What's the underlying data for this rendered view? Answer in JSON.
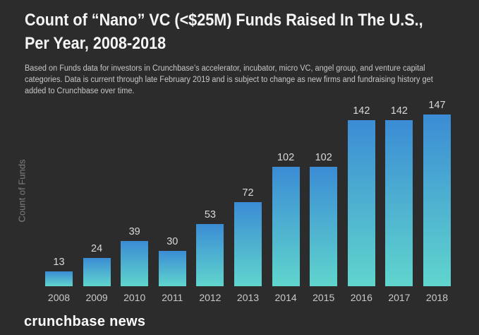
{
  "header": {
    "title_lines": [
      "Count of “Nano” VC (<$25M) Funds Raised In The U.S.,",
      "Per Year, 2008-2018"
    ],
    "subtitle_lines": [
      "Based on Funds data for investors in Crunchbase’s accelerator, incubator, micro VC, angel group, and venture capital",
      "categories. Data is current through late February 2019 and is subject to change as new firms and fundraising history get",
      "added to Crunchbase over time."
    ]
  },
  "chart_data": {
    "type": "bar",
    "title": "Count of “Nano” VC (<$25M) Funds Raised In The U.S., Per Year, 2008-2018",
    "categories": [
      "2008",
      "2009",
      "2010",
      "2011",
      "2012",
      "2013",
      "2014",
      "2015",
      "2016",
      "2017",
      "2018"
    ],
    "values": [
      13,
      24,
      39,
      30,
      53,
      72,
      102,
      102,
      142,
      142,
      147
    ],
    "xlabel": "",
    "ylabel": "Count of Funds",
    "ylim": [
      0,
      155
    ],
    "grid": false,
    "legend": false,
    "data_labels": true,
    "bar_gradient_top": "#3B8CD4",
    "bar_gradient_bottom": "#60D5CD"
  },
  "footer": {
    "brand": "crunchbase news"
  },
  "colors": {
    "background": "#2C2C2C",
    "title": "#F5F5F5",
    "subtitle": "#C7C7C7",
    "value_label": "#D9D9D9",
    "tick_label": "#C9C9C9",
    "axis_label": "#7E7E7E",
    "brand": "#FCFCFC"
  }
}
